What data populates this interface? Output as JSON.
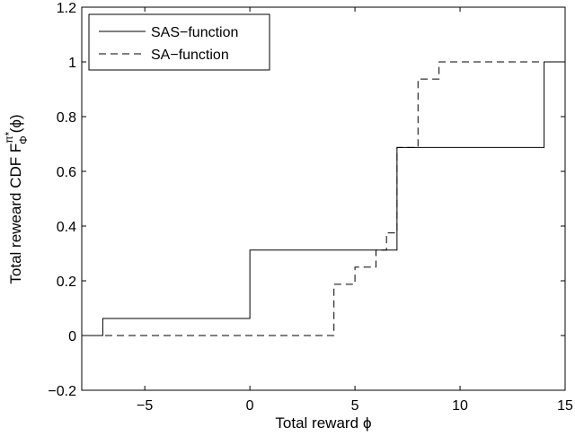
{
  "chart_data": {
    "type": "line",
    "subtype": "step",
    "xlabel": "Total reward",
    "xlabel_symbol": "ϕ",
    "ylabel": "Total reweard CDF F",
    "ylabel_symbol_super": "π*",
    "ylabel_symbol_sub": "Φ",
    "ylabel_arg": "(ϕ)",
    "xlim": [
      -8,
      15
    ],
    "ylim": [
      -0.2,
      1.2
    ],
    "xticks": [
      -5,
      0,
      5,
      10,
      15
    ],
    "xtick_labels": [
      "−5",
      "0",
      "5",
      "10",
      "15"
    ],
    "yticks": [
      -0.2,
      0,
      0.2,
      0.4,
      0.6,
      0.8,
      1,
      1.2
    ],
    "ytick_labels": [
      "−0.2",
      "0",
      "0.2",
      "0.4",
      "0.6",
      "0.8",
      "1",
      "1.2"
    ],
    "grid": false,
    "legend_position": "top-left",
    "series": [
      {
        "name": "SAS−function",
        "style": "solid",
        "color": "#000000",
        "x": [
          -8,
          -7,
          -7,
          0,
          0,
          7,
          7,
          14,
          14,
          15
        ],
        "y": [
          0,
          0,
          0.0625,
          0.0625,
          0.3125,
          0.3125,
          0.6875,
          0.6875,
          1,
          1
        ]
      },
      {
        "name": "SA−function",
        "style": "dashed",
        "color": "#000000",
        "x": [
          -8,
          4,
          4,
          5,
          5,
          6,
          6,
          6.5,
          6.5,
          7,
          7,
          8,
          8,
          9,
          9,
          15
        ],
        "y": [
          0,
          0,
          0.1875,
          0.1875,
          0.25,
          0.25,
          0.3125,
          0.3125,
          0.375,
          0.375,
          0.6875,
          0.6875,
          0.9375,
          0.9375,
          1,
          1
        ]
      }
    ]
  }
}
